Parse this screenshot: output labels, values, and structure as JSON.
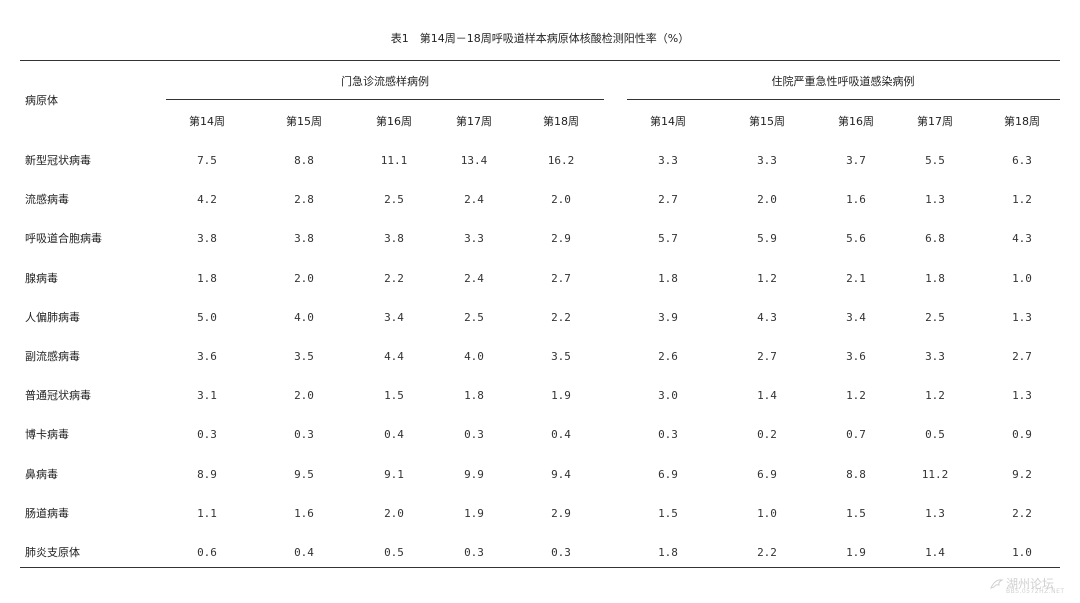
{
  "title": "表1　第14周－18周呼吸道样本病原体核酸检测阳性率（%）",
  "columns": {
    "pathogen_header": "病原体",
    "group_outpatient": "门急诊流感样病例",
    "group_inpatient": "住院严重急性呼吸道感染病例",
    "weeks": [
      "第14周",
      "第15周",
      "第16周",
      "第17周",
      "第18周"
    ]
  },
  "rows": [
    {
      "name": "新型冠状病毒",
      "outpatient": [
        "7.5",
        "8.8",
        "11.1",
        "13.4",
        "16.2"
      ],
      "inpatient": [
        "3.3",
        "3.3",
        "3.7",
        "5.5",
        "6.3"
      ]
    },
    {
      "name": "流感病毒",
      "outpatient": [
        "4.2",
        "2.8",
        "2.5",
        "2.4",
        "2.0"
      ],
      "inpatient": [
        "2.7",
        "2.0",
        "1.6",
        "1.3",
        "1.2"
      ]
    },
    {
      "name": "呼吸道合胞病毒",
      "outpatient": [
        "3.8",
        "3.8",
        "3.8",
        "3.3",
        "2.9"
      ],
      "inpatient": [
        "5.7",
        "5.9",
        "5.6",
        "6.8",
        "4.3"
      ]
    },
    {
      "name": "腺病毒",
      "outpatient": [
        "1.8",
        "2.0",
        "2.2",
        "2.4",
        "2.7"
      ],
      "inpatient": [
        "1.8",
        "1.2",
        "2.1",
        "1.8",
        "1.0"
      ]
    },
    {
      "name": "人偏肺病毒",
      "outpatient": [
        "5.0",
        "4.0",
        "3.4",
        "2.5",
        "2.2"
      ],
      "inpatient": [
        "3.9",
        "4.3",
        "3.4",
        "2.5",
        "1.3"
      ]
    },
    {
      "name": "副流感病毒",
      "outpatient": [
        "3.6",
        "3.5",
        "4.4",
        "4.0",
        "3.5"
      ],
      "inpatient": [
        "2.6",
        "2.7",
        "3.6",
        "3.3",
        "2.7"
      ]
    },
    {
      "name": "普通冠状病毒",
      "outpatient": [
        "3.1",
        "2.0",
        "1.5",
        "1.8",
        "1.9"
      ],
      "inpatient": [
        "3.0",
        "1.4",
        "1.2",
        "1.2",
        "1.3"
      ]
    },
    {
      "name": "博卡病毒",
      "outpatient": [
        "0.3",
        "0.3",
        "0.4",
        "0.3",
        "0.4"
      ],
      "inpatient": [
        "0.3",
        "0.2",
        "0.7",
        "0.5",
        "0.9"
      ]
    },
    {
      "name": "鼻病毒",
      "outpatient": [
        "8.9",
        "9.5",
        "9.1",
        "9.9",
        "9.4"
      ],
      "inpatient": [
        "6.9",
        "6.9",
        "8.8",
        "11.2",
        "9.2"
      ]
    },
    {
      "name": "肠道病毒",
      "outpatient": [
        "1.1",
        "1.6",
        "2.0",
        "1.9",
        "2.9"
      ],
      "inpatient": [
        "1.5",
        "1.0",
        "1.5",
        "1.3",
        "2.2"
      ]
    },
    {
      "name": "肺炎支原体",
      "outpatient": [
        "0.6",
        "0.4",
        "0.5",
        "0.3",
        "0.3"
      ],
      "inpatient": [
        "1.8",
        "2.2",
        "1.9",
        "1.4",
        "1.0"
      ]
    }
  ],
  "watermark": {
    "text": "湖州论坛",
    "subtext": "BBS.0572HZ.NET",
    "icon": "bird-logo-icon"
  }
}
